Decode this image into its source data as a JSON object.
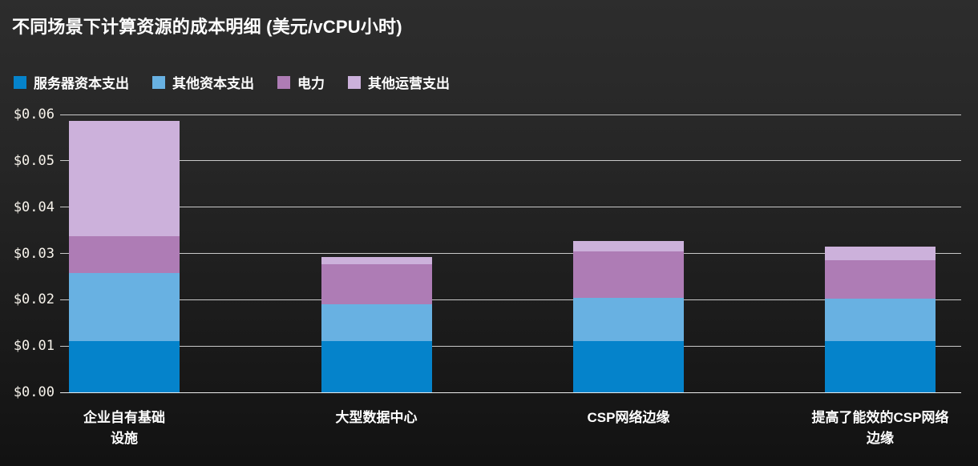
{
  "header": {
    "title": "不同场景下计算资源的成本明细 (美元/vCPU小时)"
  },
  "chart_data": {
    "type": "bar",
    "stacked": true,
    "title": "不同场景下计算资源的成本明细 (美元/vCPU小时)",
    "xlabel": "",
    "ylabel": "",
    "unit": "美元/vCPU小时",
    "grid": true,
    "legend_position": "top-left",
    "ylim": [
      0,
      0.06
    ],
    "y_tick_values": [
      0,
      0.01,
      0.02,
      0.03,
      0.04,
      0.05,
      0.06
    ],
    "y_ticks": [
      "$0.00",
      "$0.01",
      "$0.02",
      "$0.03",
      "$0.04",
      "$0.05",
      "$0.06"
    ],
    "categories": [
      "企业自有基础设施",
      "大型数据中心",
      "CSP网络边缘",
      "提高了能效的CSP网络边缘"
    ],
    "category_labels_wrapped": [
      "企业自有基础\n设施",
      "大型数据中心",
      "CSP网络边缘",
      "提高了能效的CSP网络\n边缘"
    ],
    "series": [
      {
        "name": "服务器资本支出",
        "color": "#0583CB",
        "values": [
          0.011,
          0.011,
          0.011,
          0.011
        ]
      },
      {
        "name": "其他资本支出",
        "color": "#68B1E2",
        "values": [
          0.0148,
          0.0081,
          0.0094,
          0.0093
        ]
      },
      {
        "name": "电力",
        "color": "#AE7CB5",
        "values": [
          0.008,
          0.0085,
          0.01,
          0.0083
        ]
      },
      {
        "name": "其他运营支出",
        "color": "#CCB1DB",
        "values": [
          0.0248,
          0.0016,
          0.0023,
          0.0029
        ]
      }
    ],
    "totals": [
      0.0586,
      0.0292,
      0.0327,
      0.0315
    ]
  },
  "colors": {
    "background_top": "#2d2d2d",
    "background_bottom": "#121212",
    "gridline": "#c9c9c9",
    "baseline": "#ececec",
    "title_text": "#ffffff",
    "axis_text": "#f8f4ec"
  }
}
